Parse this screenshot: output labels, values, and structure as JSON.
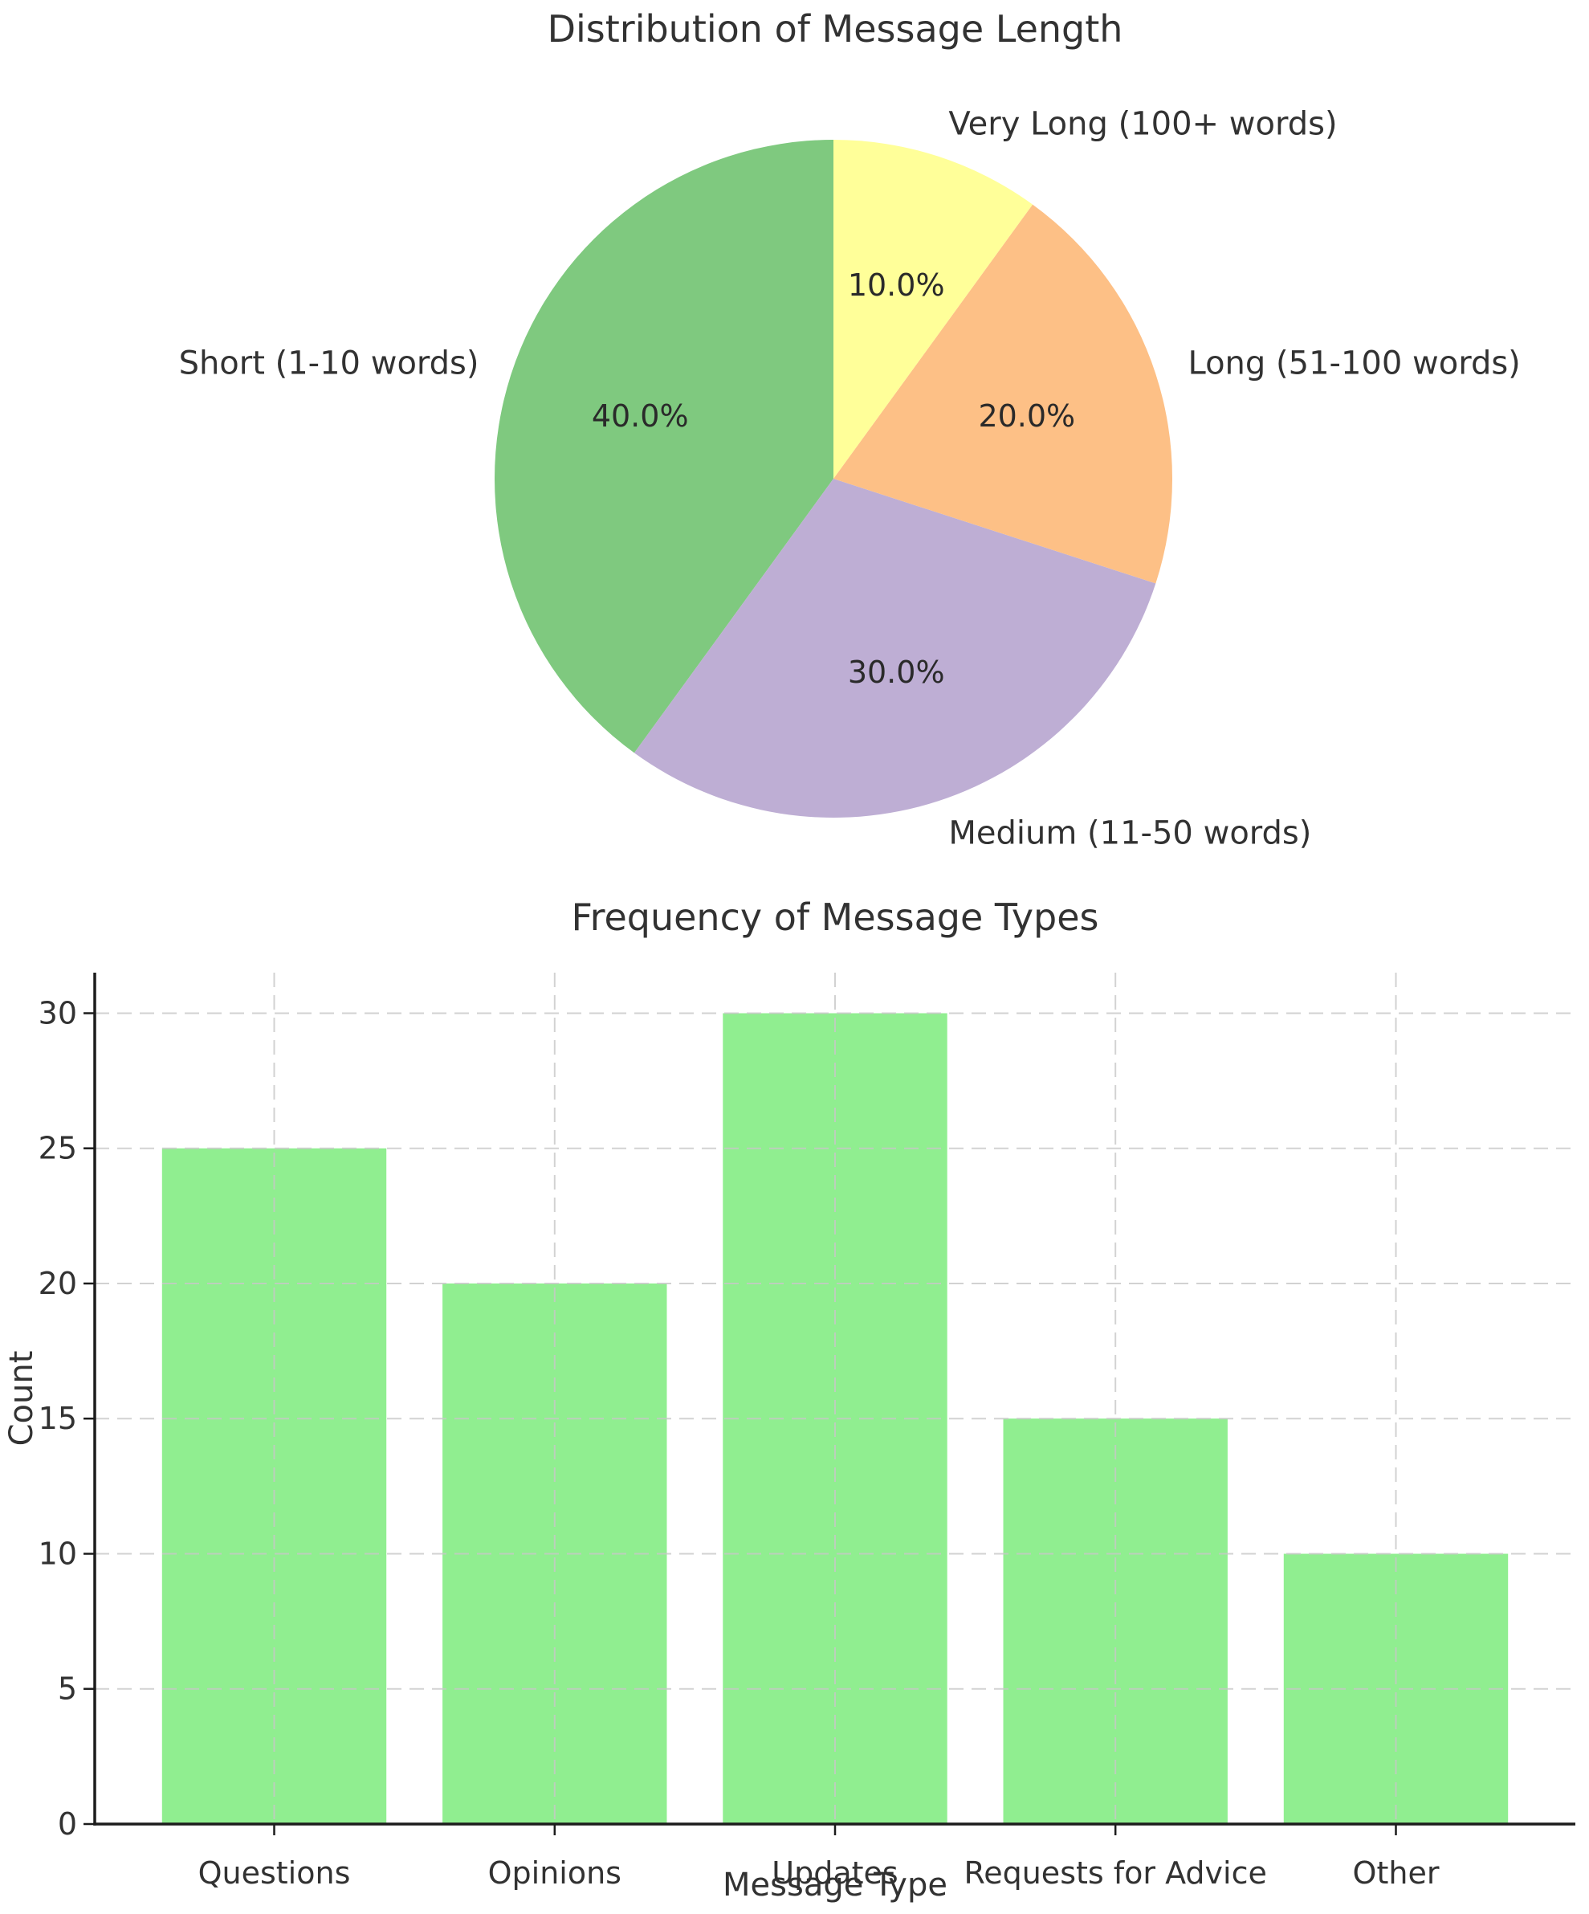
{
  "figure_titles": {
    "pie_title": "Distribution of Message Length",
    "bar_title": "Frequency of Message Types"
  },
  "chart_data": [
    {
      "type": "pie",
      "title": "Distribution of Message Length",
      "labels": [
        "Short (1-10 words)",
        "Medium (11-50 words)",
        "Long (51-100 words)",
        "Very Long (100+ words)"
      ],
      "values": [
        40,
        30,
        20,
        10
      ],
      "pct_labels": [
        "40.0%",
        "30.0%",
        "20.0%",
        "10.0%"
      ],
      "colors": [
        "#7fc97f",
        "#beaed4",
        "#fdc086",
        "#ffff99"
      ],
      "start_angle": 90,
      "counterclockwise": true,
      "label_distance": 1.1,
      "pct_distance": 0.6,
      "legend": "none"
    },
    {
      "type": "bar",
      "title": "Frequency of Message Types",
      "categories": [
        "Questions",
        "Opinions",
        "Updates",
        "Requests for Advice",
        "Other"
      ],
      "values": [
        25,
        20,
        30,
        15,
        10
      ],
      "xlabel": "Message Type",
      "ylabel": "Count",
      "yticks": [
        0,
        5,
        10,
        15,
        20,
        25,
        30
      ],
      "ylim": [
        0,
        31.5
      ],
      "xlim": [
        -0.64,
        4.64
      ],
      "bar_width": 0.8,
      "bar_color": "#90ee90",
      "grid": "dashed",
      "legend": "none"
    }
  ],
  "style": {
    "text_color": "#323232",
    "pct_text_color": "#2a2a2a",
    "spine_color": "#1c1c1c",
    "grid_color": "#c8c8c8",
    "background": "#ffffff"
  }
}
